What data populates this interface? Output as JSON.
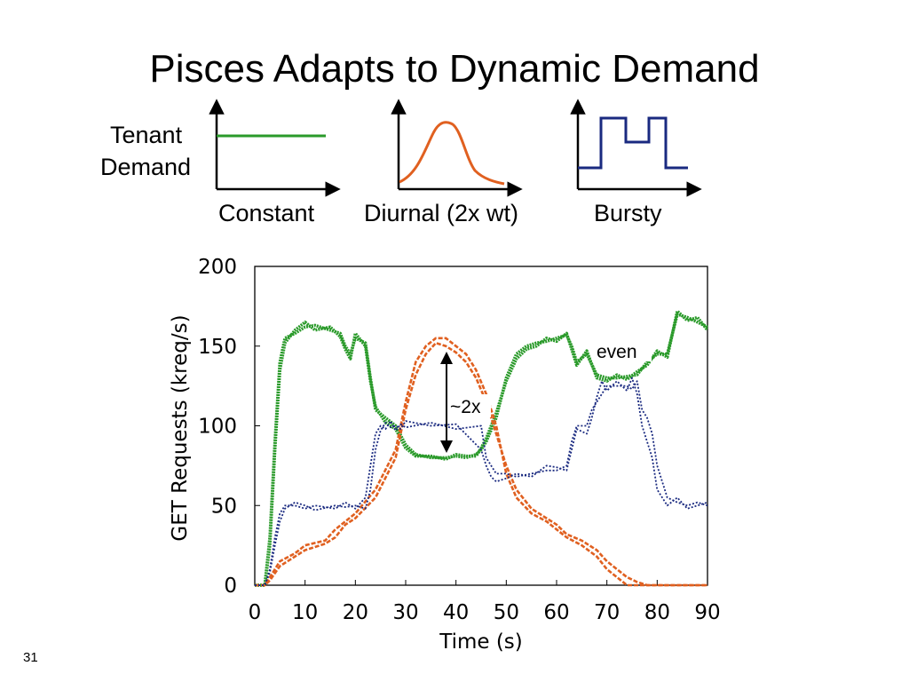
{
  "slide": {
    "title": "Pisces Adapts to Dynamic Demand",
    "demand_label_line1": "Tenant",
    "demand_label_line2": "Demand",
    "pattern_labels": [
      "Constant",
      "Diurnal (2x wt)",
      "Bursty"
    ],
    "slide_number": "31"
  },
  "colors": {
    "constant": "#2a9a2a",
    "diurnal": "#e06020",
    "bursty": "#1a2a80"
  },
  "chart_data": {
    "type": "line",
    "xlabel": "Time (s)",
    "ylabel": "GET Requests (kreq/s)",
    "xlim": [
      0,
      90
    ],
    "ylim": [
      0,
      200
    ],
    "xticks": [
      "0",
      "10",
      "20",
      "30",
      "40",
      "50",
      "60",
      "70",
      "80",
      "90"
    ],
    "yticks": [
      "0",
      "50",
      "100",
      "150",
      "200"
    ],
    "series": [
      {
        "color": "#2a9a2a",
        "x": [
          0,
          2,
          3,
          4,
          5,
          6,
          8,
          10,
          12,
          15,
          17,
          18,
          19,
          20,
          22,
          23,
          24,
          26,
          28,
          30,
          32,
          35,
          38,
          40,
          42,
          44,
          45,
          46,
          48,
          50,
          52,
          54,
          56,
          58,
          60,
          62,
          63,
          64,
          66,
          68,
          70,
          72,
          74,
          76,
          78,
          80,
          82,
          84,
          86,
          88,
          90
        ],
        "y": [
          0,
          0,
          30,
          90,
          140,
          155,
          158,
          162,
          163,
          160,
          158,
          150,
          145,
          155,
          152,
          130,
          110,
          105,
          100,
          88,
          82,
          80,
          80,
          81,
          80,
          82,
          85,
          90,
          105,
          130,
          145,
          150,
          152,
          153,
          155,
          157,
          150,
          140,
          145,
          132,
          130,
          130,
          131,
          132,
          140,
          145,
          145,
          170,
          168,
          165,
          162
        ]
      },
      {
        "color": "#2a9a2a",
        "x": [
          0,
          2,
          3,
          4,
          5,
          6,
          8,
          10,
          12,
          15,
          17,
          18,
          19,
          20,
          22,
          23,
          24,
          26,
          28,
          30,
          32,
          35,
          38,
          40,
          42,
          44,
          45,
          46,
          48,
          50,
          52,
          54,
          56,
          58,
          60,
          62,
          63,
          64,
          66,
          68,
          70,
          72,
          74,
          76,
          78,
          80,
          82,
          84,
          86,
          88,
          90
        ],
        "y": [
          0,
          0,
          25,
          85,
          135,
          152,
          160,
          165,
          160,
          162,
          156,
          148,
          142,
          158,
          150,
          128,
          112,
          102,
          98,
          86,
          81,
          81,
          79,
          82,
          81,
          81,
          86,
          92,
          108,
          128,
          142,
          148,
          150,
          155,
          153,
          158,
          148,
          138,
          147,
          130,
          128,
          132,
          129,
          134,
          138,
          147,
          143,
          172,
          166,
          168,
          160
        ]
      },
      {
        "color": "#e06020",
        "x": [
          0,
          2,
          3,
          5,
          8,
          10,
          14,
          16,
          18,
          20,
          24,
          28,
          30,
          32,
          34,
          36,
          38,
          40,
          42,
          44,
          46,
          48,
          50,
          52,
          55,
          58,
          60,
          62,
          65,
          68,
          70,
          72,
          74,
          76,
          78,
          80,
          85,
          90
        ],
        "y": [
          0,
          0,
          5,
          15,
          20,
          25,
          28,
          35,
          40,
          45,
          60,
          85,
          115,
          140,
          150,
          155,
          155,
          150,
          145,
          135,
          120,
          100,
          70,
          55,
          45,
          40,
          35,
          30,
          25,
          18,
          10,
          5,
          0,
          0,
          0,
          0,
          0,
          0
        ]
      },
      {
        "color": "#e06020",
        "x": [
          0,
          2,
          3,
          5,
          8,
          10,
          14,
          16,
          18,
          20,
          24,
          28,
          30,
          32,
          34,
          36,
          38,
          40,
          42,
          44,
          46,
          48,
          50,
          52,
          55,
          58,
          60,
          62,
          65,
          68,
          70,
          72,
          74,
          76,
          78,
          80,
          85,
          90
        ],
        "y": [
          0,
          0,
          3,
          12,
          18,
          22,
          26,
          30,
          38,
          42,
          55,
          80,
          110,
          132,
          145,
          152,
          150,
          146,
          140,
          130,
          115,
          95,
          75,
          60,
          48,
          42,
          38,
          32,
          28,
          22,
          15,
          10,
          5,
          2,
          0,
          0,
          0,
          0
        ]
      },
      {
        "color": "#1a2a80",
        "x": [
          0,
          2,
          3,
          4,
          5,
          6,
          8,
          10,
          12,
          16,
          18,
          20,
          22,
          23,
          24,
          25,
          26,
          27,
          28,
          29,
          30,
          35,
          40,
          45,
          46,
          47,
          48,
          50,
          52,
          55,
          58,
          60,
          62,
          63,
          64,
          66,
          67,
          68,
          69,
          70,
          72,
          74,
          75,
          76,
          77,
          78,
          79,
          80,
          82,
          84,
          86,
          88,
          90
        ],
        "y": [
          0,
          0,
          10,
          30,
          45,
          50,
          50,
          48,
          50,
          48,
          52,
          48,
          55,
          75,
          95,
          100,
          98,
          103,
          97,
          101,
          99,
          102,
          98,
          100,
          80,
          75,
          70,
          70,
          68,
          70,
          72,
          72,
          75,
          90,
          100,
          100,
          110,
          115,
          120,
          125,
          125,
          125,
          123,
          128,
          110,
          105,
          95,
          75,
          55,
          52,
          50,
          52,
          50
        ]
      },
      {
        "color": "#1a2a80",
        "x": [
          0,
          2,
          3,
          4,
          5,
          6,
          8,
          10,
          12,
          16,
          18,
          20,
          22,
          23,
          24,
          25,
          26,
          27,
          28,
          29,
          30,
          35,
          40,
          45,
          46,
          47,
          48,
          50,
          52,
          55,
          58,
          60,
          62,
          63,
          64,
          66,
          67,
          68,
          69,
          70,
          72,
          74,
          75,
          76,
          77,
          78,
          79,
          80,
          82,
          84,
          86,
          88,
          90
        ],
        "y": [
          0,
          0,
          8,
          25,
          40,
          48,
          52,
          50,
          47,
          50,
          49,
          50,
          48,
          60,
          85,
          97,
          102,
          99,
          100,
          98,
          103,
          100,
          101,
          85,
          75,
          68,
          65,
          67,
          70,
          68,
          75,
          74,
          72,
          85,
          98,
          95,
          105,
          118,
          128,
          122,
          128,
          122,
          130,
          120,
          100,
          90,
          80,
          60,
          50,
          55,
          48,
          50,
          52
        ]
      }
    ],
    "annotations": [
      "~2x",
      "even"
    ]
  }
}
